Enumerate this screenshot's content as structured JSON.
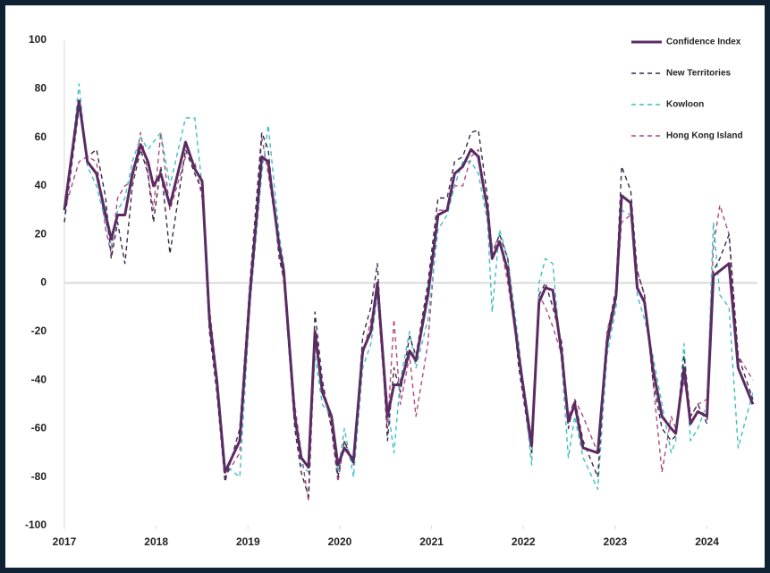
{
  "chart_data": {
    "type": "line",
    "x": [
      2017.0,
      2017.16,
      2017.25,
      2017.35,
      2017.45,
      2017.51,
      2017.58,
      2017.66,
      2017.74,
      2017.83,
      2017.91,
      2017.97,
      2018.05,
      2018.15,
      2018.32,
      2018.42,
      2018.5,
      2018.58,
      2018.66,
      2018.75,
      2018.91,
      2019.02,
      2019.15,
      2019.22,
      2019.34,
      2019.39,
      2019.51,
      2019.58,
      2019.66,
      2019.73,
      2019.81,
      2019.91,
      2019.98,
      2020.05,
      2020.15,
      2020.25,
      2020.34,
      2020.41,
      2020.52,
      2020.59,
      2020.66,
      2020.76,
      2020.83,
      2020.96,
      2021.07,
      2021.17,
      2021.25,
      2021.34,
      2021.43,
      2021.51,
      2021.61,
      2021.66,
      2021.74,
      2021.83,
      2021.95,
      2022.09,
      2022.17,
      2022.24,
      2022.32,
      2022.42,
      2022.49,
      2022.56,
      2022.65,
      2022.81,
      2022.91,
      2023.01,
      2023.07,
      2023.17,
      2023.24,
      2023.32,
      2023.41,
      2023.51,
      2023.61,
      2023.66,
      2023.75,
      2023.82,
      2023.9,
      2024.0,
      2024.07,
      2024.14,
      2024.24,
      2024.34,
      2024.5
    ],
    "series": [
      {
        "name": "Confidence Index",
        "color": "#5b2b63",
        "dashed": false,
        "values": [
          30,
          75,
          50,
          45,
          28,
          18,
          28,
          28,
          45,
          57,
          50,
          40,
          45,
          32,
          58,
          47,
          42,
          -15,
          -40,
          -78,
          -65,
          -5,
          52,
          50,
          15,
          5,
          -55,
          -72,
          -76,
          -20,
          -45,
          -55,
          -75,
          -68,
          -73,
          -28,
          -20,
          0,
          -55,
          -42,
          -42,
          -28,
          -32,
          -5,
          28,
          30,
          45,
          48,
          55,
          52,
          30,
          10,
          17,
          5,
          -30,
          -67,
          -8,
          -2,
          -3,
          -30,
          -57,
          -50,
          -68,
          -70,
          -25,
          -5,
          36,
          33,
          -2,
          -8,
          -35,
          -55,
          -60,
          -62,
          -35,
          -58,
          -53,
          -55,
          3,
          5,
          8,
          -35,
          -50
        ]
      },
      {
        "name": "New Territories",
        "color": "#3a2a4a",
        "dashed": true,
        "values": [
          25,
          72,
          52,
          55,
          35,
          10,
          25,
          8,
          40,
          55,
          45,
          25,
          48,
          12,
          55,
          45,
          38,
          -20,
          -45,
          -82,
          -60,
          0,
          62,
          55,
          10,
          2,
          -60,
          -78,
          -88,
          -12,
          -40,
          -60,
          -80,
          -65,
          -75,
          -22,
          -10,
          8,
          -65,
          -35,
          -45,
          -22,
          -30,
          0,
          35,
          35,
          50,
          52,
          62,
          63,
          35,
          12,
          20,
          10,
          -35,
          -70,
          -5,
          0,
          -10,
          -25,
          -60,
          -48,
          -65,
          -80,
          -22,
          -2,
          48,
          38,
          5,
          -5,
          -40,
          -60,
          -65,
          -63,
          -30,
          -55,
          -50,
          -58,
          5,
          10,
          20,
          -30,
          -48
        ]
      },
      {
        "name": "Kowloon",
        "color": "#3fbfc0",
        "dashed": true,
        "values": [
          25,
          82,
          48,
          40,
          25,
          15,
          30,
          35,
          50,
          60,
          55,
          58,
          62,
          40,
          68,
          68,
          40,
          -20,
          -40,
          -75,
          -80,
          -10,
          45,
          65,
          20,
          8,
          -55,
          -75,
          -78,
          -30,
          -50,
          -55,
          -78,
          -60,
          -80,
          -35,
          -25,
          -5,
          -50,
          -70,
          -40,
          -20,
          -35,
          -15,
          22,
          28,
          40,
          50,
          50,
          45,
          25,
          -12,
          22,
          10,
          -25,
          -75,
          0,
          10,
          8,
          -35,
          -72,
          -55,
          -72,
          -85,
          -30,
          -10,
          30,
          28,
          -5,
          -15,
          -30,
          -50,
          -70,
          -65,
          -25,
          -65,
          -60,
          -50,
          25,
          -5,
          -10,
          -68,
          -45
        ]
      },
      {
        "name": "Hong Kong Island",
        "color": "#b04a7e",
        "dashed": true,
        "values": [
          30,
          50,
          52,
          50,
          22,
          12,
          35,
          40,
          42,
          62,
          45,
          30,
          62,
          30,
          52,
          50,
          35,
          -10,
          -38,
          -80,
          -70,
          -10,
          60,
          45,
          15,
          0,
          -50,
          -70,
          -90,
          -25,
          -42,
          -60,
          -82,
          -65,
          -75,
          -30,
          -15,
          -5,
          -60,
          -15,
          -50,
          -30,
          -55,
          -25,
          30,
          30,
          40,
          40,
          52,
          55,
          28,
          15,
          18,
          0,
          -30,
          -65,
          -5,
          -10,
          -18,
          -30,
          -55,
          -48,
          -55,
          -70,
          -20,
          -5,
          25,
          28,
          5,
          -5,
          -40,
          -78,
          -55,
          -60,
          -40,
          -55,
          -50,
          -48,
          15,
          32,
          20,
          -30,
          -40
        ]
      }
    ],
    "xlim": [
      2017,
      2024.55
    ],
    "xticks": [
      2017,
      2018,
      2019,
      2020,
      2021,
      2022,
      2023,
      2024
    ],
    "ylim": [
      -100,
      100
    ],
    "yticks": [
      -100,
      -80,
      -60,
      -40,
      -20,
      0,
      20,
      40,
      60,
      80,
      100
    ],
    "legend": "top-right"
  }
}
